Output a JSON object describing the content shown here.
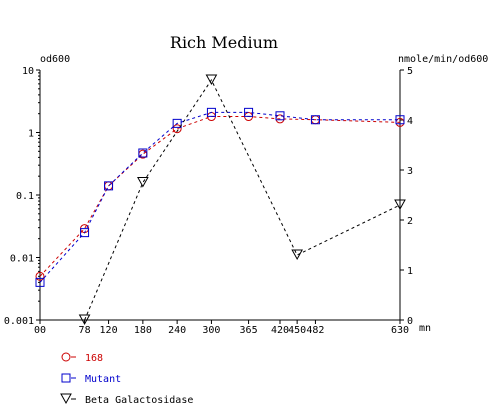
{
  "chart_data": {
    "type": "line",
    "title": "Rich Medium",
    "y_left_label": "od600",
    "y_right_label": "nmole/min/od600",
    "x_unit": "mn",
    "x_ticks": [
      0,
      78,
      120,
      180,
      240,
      300,
      365,
      420,
      450,
      482,
      630
    ],
    "x_tick_labels": [
      "00",
      "78",
      "120",
      "180",
      "240",
      "300",
      "365",
      "420",
      "450",
      "482",
      "630"
    ],
    "xlim": [
      0,
      630
    ],
    "y_left_ticks": [
      "10",
      "1",
      "0.1",
      "0.01",
      "0.001"
    ],
    "y_left_scale": "log",
    "y_left_lim": [
      0.001,
      10
    ],
    "y_right_ticks": [
      "5",
      "4",
      "3",
      "2",
      "1",
      "0"
    ],
    "y_right_lim": [
      0,
      5
    ],
    "series": [
      {
        "name": "168",
        "color": "#cc0000",
        "marker": "circle",
        "axis": "left",
        "x": [
          0,
          78,
          120,
          180,
          240,
          300,
          365,
          420,
          482,
          630
        ],
        "y": [
          0.005,
          0.029,
          0.14,
          0.45,
          1.15,
          1.8,
          1.8,
          1.65,
          1.6,
          1.45
        ]
      },
      {
        "name": "Mutant",
        "color": "#0000cc",
        "marker": "square",
        "axis": "left",
        "x": [
          0,
          78,
          120,
          180,
          240,
          300,
          365,
          420,
          482,
          630
        ],
        "y": [
          0.004,
          0.025,
          0.14,
          0.47,
          1.4,
          2.1,
          2.1,
          1.85,
          1.6,
          1.6
        ]
      },
      {
        "name": "Beta Galactosidase",
        "color": "#000000",
        "marker": "triangle-down",
        "axis": "right",
        "x": [
          78,
          180,
          300,
          450,
          630
        ],
        "y": [
          0.0,
          2.75,
          4.8,
          1.3,
          2.3
        ]
      }
    ],
    "legend_position": "bottom-left"
  }
}
